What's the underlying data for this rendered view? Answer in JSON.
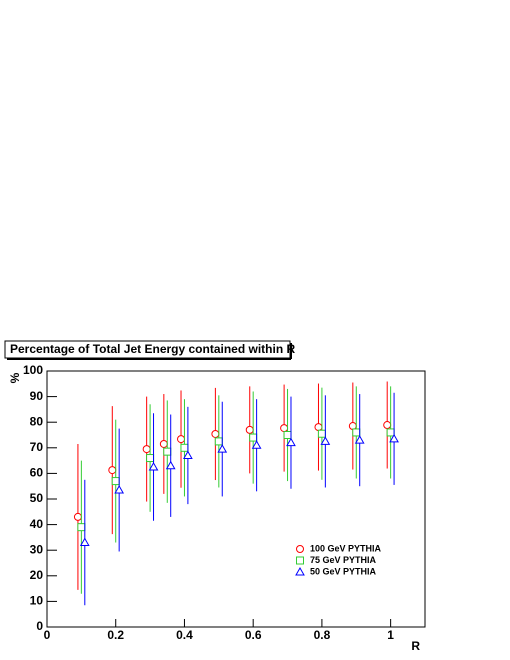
{
  "chart_data": {
    "type": "scatter",
    "title": "Percentage of Total Jet Energy contained within R",
    "xlabel": "R",
    "ylabel": "%",
    "xlim": [
      0,
      1.1
    ],
    "ylim": [
      0,
      100
    ],
    "xticks": [
      0,
      0.2,
      0.4,
      0.6,
      0.8,
      1
    ],
    "yticks": [
      0,
      10,
      20,
      30,
      40,
      50,
      60,
      70,
      80,
      90,
      100
    ],
    "legend": "lower-right",
    "series": [
      {
        "name": "100 GeV PYTHIA",
        "color": "#ff0000",
        "marker": "circle",
        "x": [
          0.09,
          0.19,
          0.29,
          0.34,
          0.39,
          0.49,
          0.59,
          0.69,
          0.79,
          0.89,
          0.99
        ],
        "values": [
          43,
          61.3,
          69.5,
          71.5,
          73.4,
          75.4,
          77,
          77.7,
          78.1,
          78.5,
          78.9
        ],
        "errors": [
          28.5,
          25,
          20.5,
          19.5,
          19,
          18,
          17,
          17,
          17,
          17,
          17
        ]
      },
      {
        "name": "75 GeV PYTHIA",
        "color": "#33cc33",
        "marker": "square",
        "x": [
          0.1,
          0.2,
          0.3,
          0.35,
          0.4,
          0.5,
          0.6,
          0.7,
          0.8,
          0.9,
          1.0
        ],
        "values": [
          39,
          57,
          66,
          68.5,
          70,
          72.5,
          74,
          75,
          75.5,
          76,
          76
        ],
        "errors": [
          26,
          24,
          21,
          20,
          19,
          18,
          18,
          18,
          18,
          18,
          18
        ]
      },
      {
        "name": "50 GeV PYTHIA",
        "color": "#0000ff",
        "marker": "triangle",
        "x": [
          0.11,
          0.21,
          0.31,
          0.36,
          0.41,
          0.51,
          0.61,
          0.71,
          0.81,
          0.91,
          1.01
        ],
        "values": [
          33,
          53.5,
          62.5,
          63,
          67,
          69.5,
          71,
          72,
          72.5,
          73,
          73.5
        ],
        "errors": [
          24.5,
          24,
          21,
          20,
          19,
          18.5,
          18,
          18,
          18,
          18,
          18
        ]
      }
    ]
  }
}
